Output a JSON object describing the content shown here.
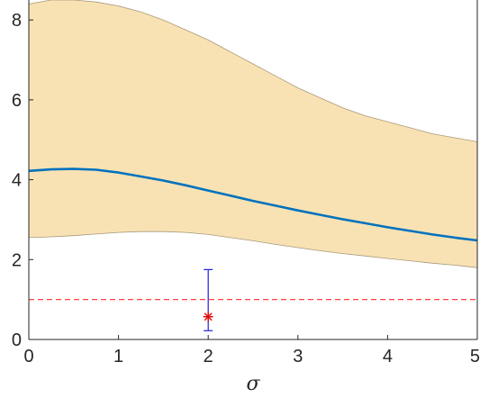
{
  "chart_data": {
    "type": "line",
    "title": "",
    "xlabel": "σ",
    "ylabel": "",
    "xlim": [
      0,
      5
    ],
    "ylim": [
      0,
      8.5
    ],
    "grid": false,
    "x_ticks": [
      0,
      1,
      2,
      3,
      4,
      5
    ],
    "x_tick_labels": [
      "0",
      "1",
      "2",
      "3",
      "4",
      "5"
    ],
    "y_ticks": [
      0,
      2,
      4,
      6,
      8
    ],
    "y_tick_labels": [
      "0",
      "2",
      "4",
      "6",
      "8"
    ],
    "band": {
      "x": [
        0,
        0.25,
        0.5,
        0.75,
        1,
        1.25,
        1.5,
        1.75,
        2,
        2.25,
        2.5,
        2.75,
        3,
        3.25,
        3.5,
        3.75,
        4,
        4.25,
        4.5,
        4.75,
        5
      ],
      "upper": [
        8.4,
        8.5,
        8.5,
        8.45,
        8.35,
        8.2,
        8.0,
        7.75,
        7.5,
        7.2,
        6.9,
        6.6,
        6.3,
        6.05,
        5.8,
        5.6,
        5.45,
        5.3,
        5.15,
        5.05,
        4.95
      ],
      "lower": [
        2.55,
        2.57,
        2.6,
        2.64,
        2.68,
        2.7,
        2.7,
        2.68,
        2.63,
        2.55,
        2.47,
        2.38,
        2.3,
        2.22,
        2.15,
        2.09,
        2.03,
        1.97,
        1.91,
        1.86,
        1.8
      ],
      "fill_color": "#f8e2b4",
      "edge_color": "#a89a7a"
    },
    "series": [
      {
        "x": [
          0,
          0.25,
          0.5,
          0.75,
          1,
          1.25,
          1.5,
          1.75,
          2,
          2.25,
          2.5,
          2.75,
          3,
          3.25,
          3.5,
          3.75,
          4,
          4.25,
          4.5,
          4.75,
          5
        ],
        "values": [
          4.22,
          4.26,
          4.27,
          4.25,
          4.18,
          4.08,
          3.98,
          3.86,
          3.73,
          3.6,
          3.47,
          3.35,
          3.23,
          3.12,
          3.01,
          2.91,
          2.81,
          2.72,
          2.63,
          2.55,
          2.48
        ],
        "color": "#0072bd"
      }
    ],
    "reference_line": {
      "y": 1.0,
      "color": "#ff4040",
      "style": "dashed"
    },
    "errorbar": {
      "x": 2,
      "y": 0.57,
      "low": 0.22,
      "high": 1.75,
      "bar_color": "#2020e0",
      "marker": "asterisk",
      "marker_color": "#e01010"
    }
  }
}
